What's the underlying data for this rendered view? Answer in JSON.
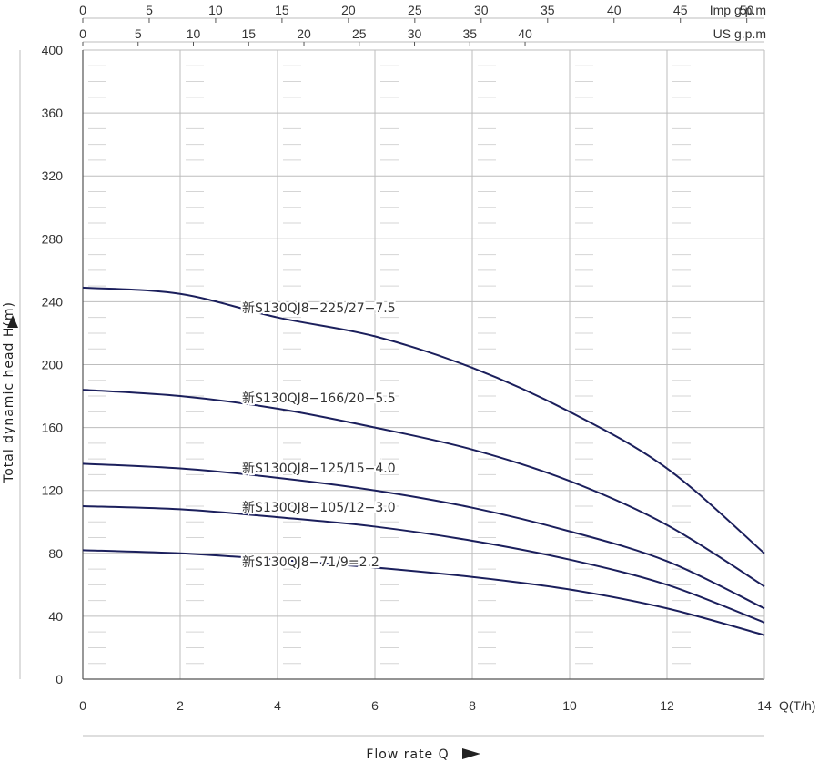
{
  "chart_data": {
    "type": "line",
    "xlabel": "Flow rate Q",
    "x_unit": "Q(T/h)",
    "ylabel": "Total dynamic head  H(m)",
    "xlim": [
      0,
      14
    ],
    "ylim": [
      0,
      400
    ],
    "x_ticks": [
      0,
      2,
      4,
      6,
      8,
      10,
      12,
      14
    ],
    "y_ticks": [
      0,
      40,
      80,
      120,
      160,
      200,
      240,
      280,
      320,
      360,
      400
    ],
    "grid": true,
    "secondary_axes": [
      {
        "label": "Imp g.p.m",
        "ticks": [
          0,
          5,
          10,
          15,
          20,
          25,
          30,
          35,
          40,
          45,
          50
        ]
      },
      {
        "label": "US g.p.m",
        "ticks": [
          0,
          5,
          10,
          15,
          20,
          25,
          30,
          35,
          40
        ]
      }
    ],
    "series": [
      {
        "name": "新S130QJ8−225/27−7.5",
        "x": [
          0,
          2,
          4,
          6,
          8,
          10,
          12,
          14
        ],
        "values": [
          249,
          245,
          230,
          218,
          198,
          170,
          134,
          80
        ]
      },
      {
        "name": "新S130QJ8−166/20−5.5",
        "x": [
          0,
          2,
          4,
          6,
          8,
          10,
          12,
          14
        ],
        "values": [
          184,
          180,
          172,
          160,
          146,
          126,
          98,
          59
        ]
      },
      {
        "name": "新S130QJ8−125/15−4.0",
        "x": [
          0,
          2,
          4,
          6,
          8,
          10,
          12,
          14
        ],
        "values": [
          137,
          134,
          128,
          120,
          109,
          94,
          75,
          45
        ]
      },
      {
        "name": "新S130QJ8−105/12−3.0",
        "x": [
          0,
          2,
          4,
          6,
          8,
          10,
          12,
          14
        ],
        "values": [
          110,
          108,
          103,
          97,
          88,
          76,
          60,
          36
        ]
      },
      {
        "name": "新S130QJ8−71/9=2.2",
        "x": [
          0,
          2,
          4,
          6,
          8,
          10,
          12,
          14
        ],
        "values": [
          82,
          80,
          76,
          71,
          65,
          57,
          45,
          28
        ]
      }
    ],
    "colors": {
      "curve": "#1b1f5c",
      "grid": "#bdbdbd",
      "axis": "#555555"
    }
  }
}
